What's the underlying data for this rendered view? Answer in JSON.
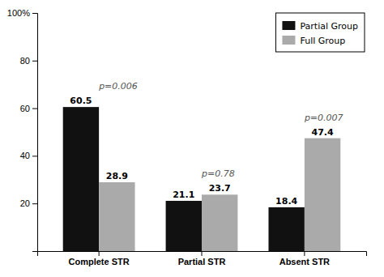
{
  "chart_data": {
    "type": "bar",
    "categories": [
      "Complete STR",
      "Partial STR",
      "Absent STR"
    ],
    "series": [
      {
        "name": "Partial Group",
        "color": "#111111",
        "values": [
          60.5,
          21.1,
          18.4
        ]
      },
      {
        "name": "Full Group",
        "color": "#aaaaaa",
        "values": [
          28.9,
          23.7,
          47.4
        ]
      }
    ],
    "ylim": [
      0,
      100
    ],
    "yticks": [
      20,
      40,
      60,
      80,
      {
        "value": 100,
        "label": "100%"
      }
    ],
    "grid": false,
    "legend": "upper right",
    "data_labels": true,
    "annotations": [
      {
        "text": "p=0.006",
        "category": "Complete STR"
      },
      {
        "text": "p=0.78",
        "category": "Partial STR"
      },
      {
        "text": "p=0.007",
        "category": "Absent STR"
      }
    ]
  }
}
